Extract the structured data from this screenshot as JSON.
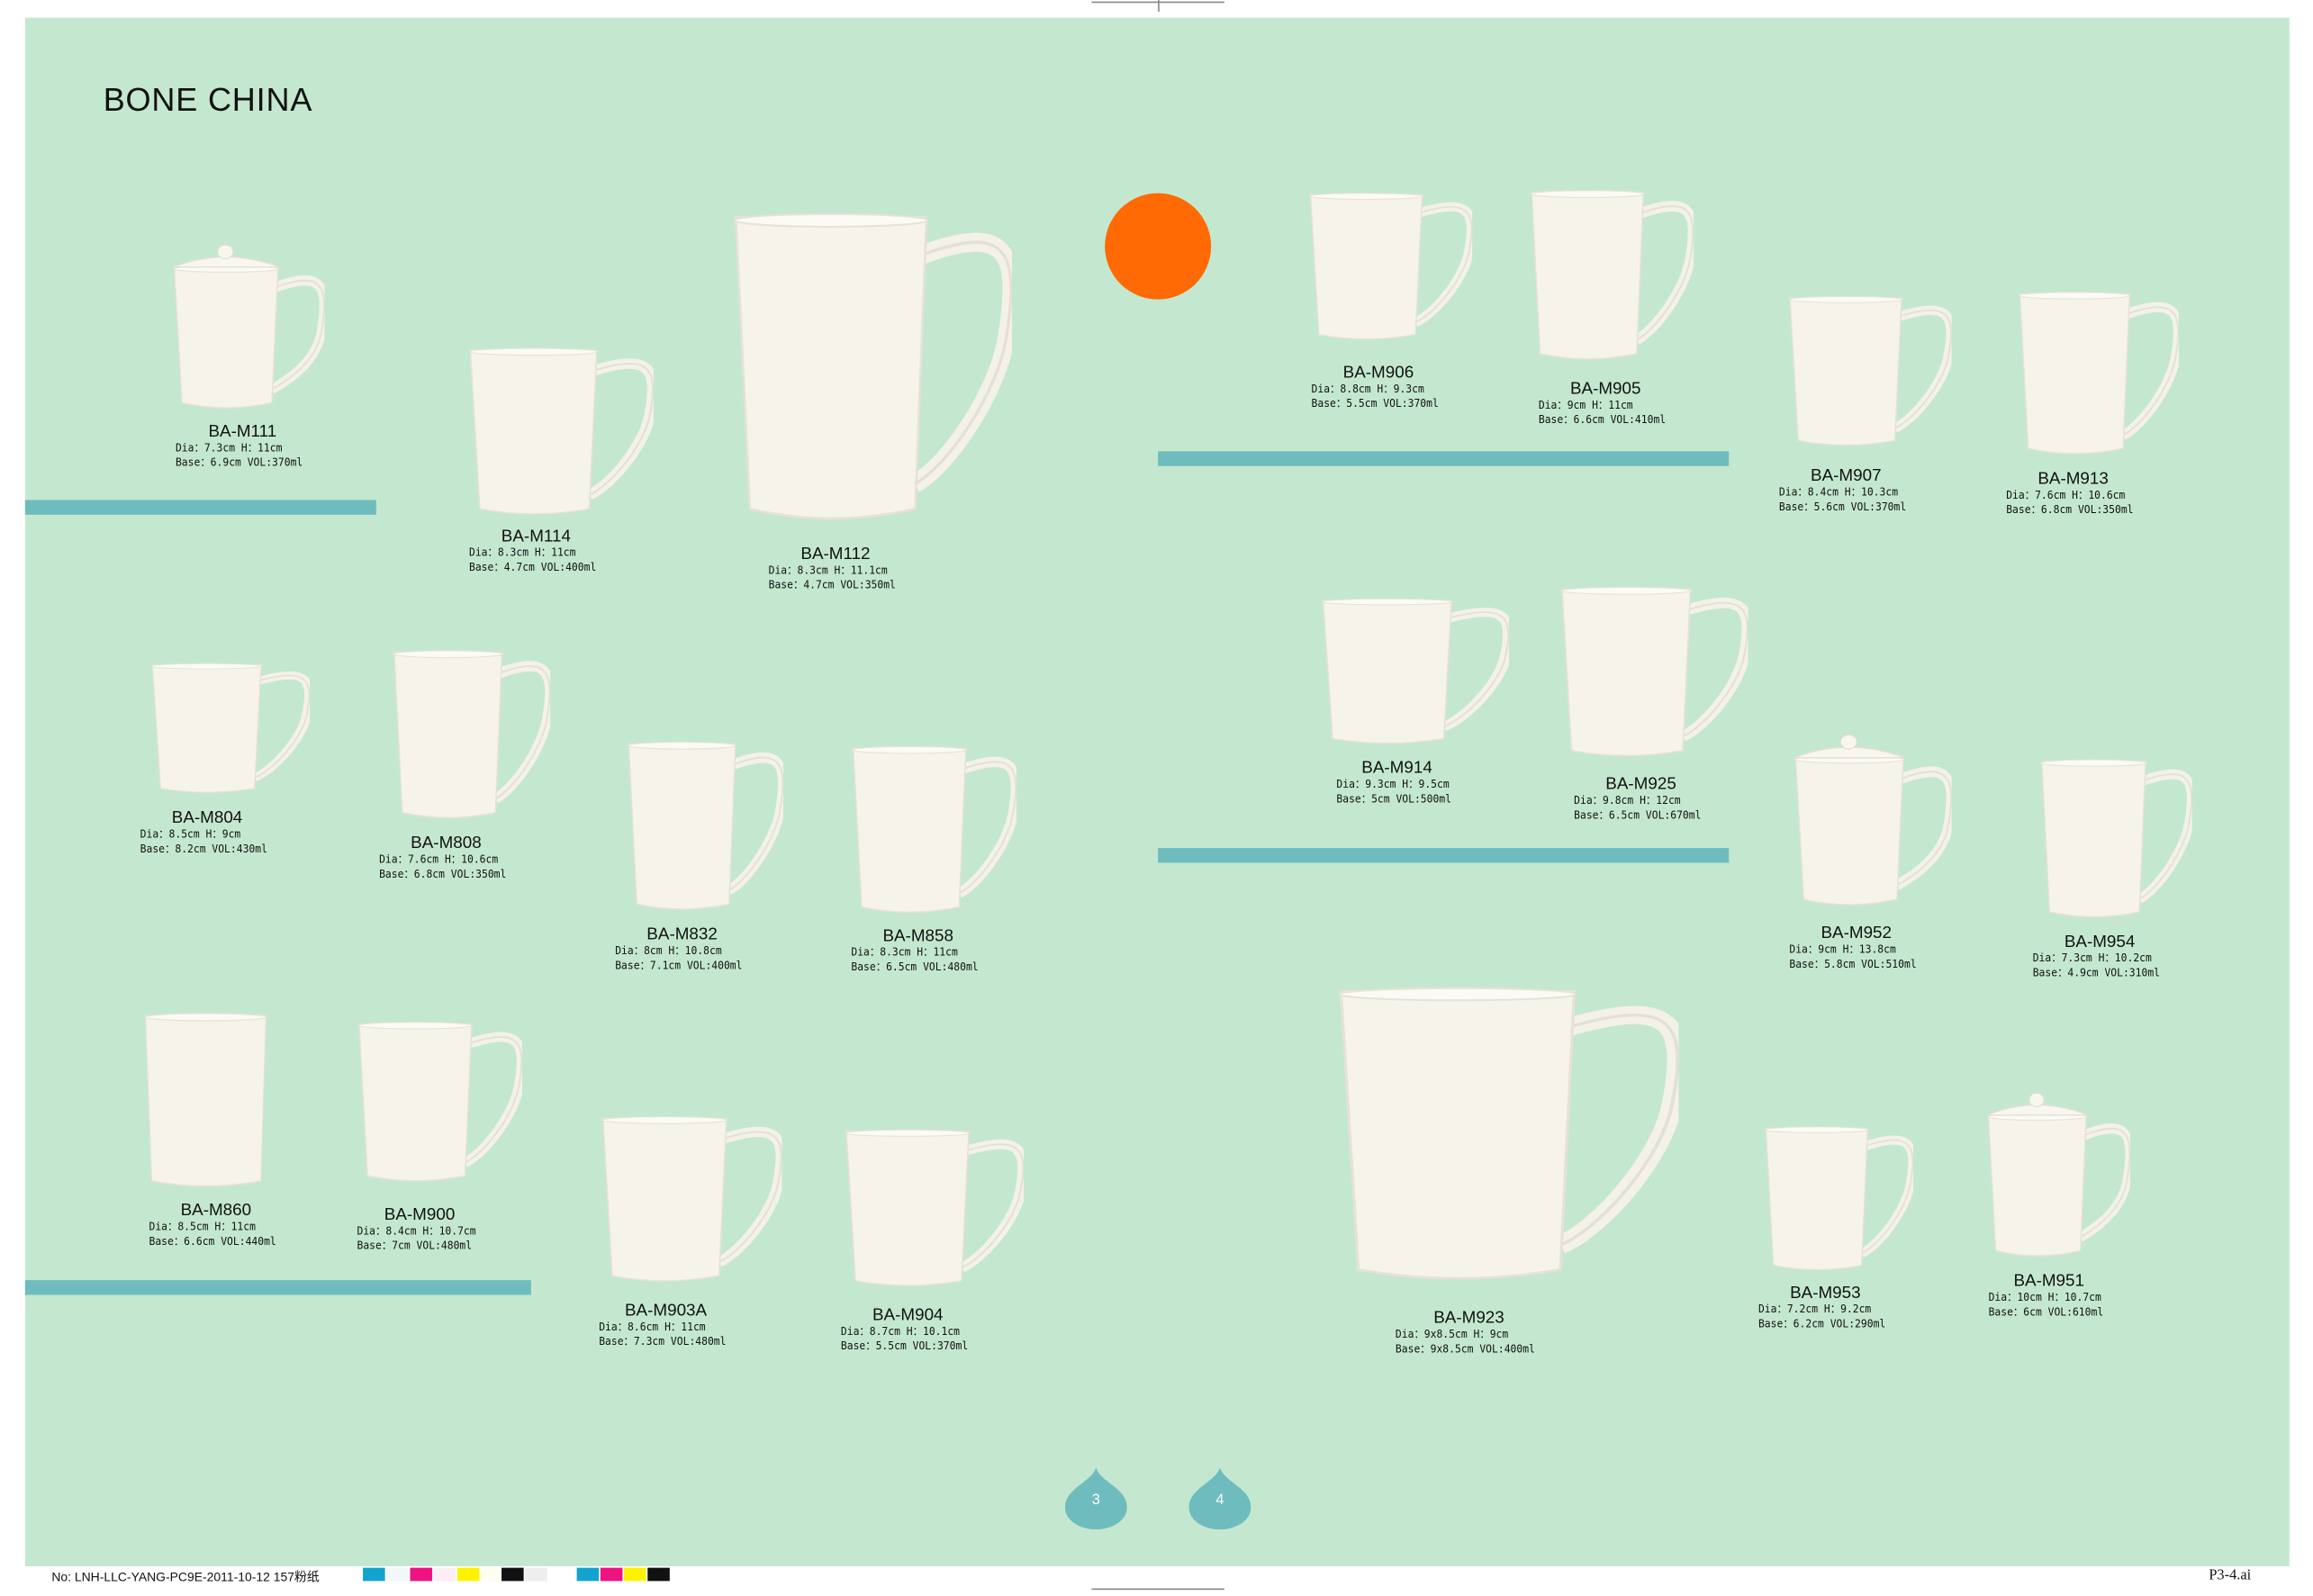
{
  "page_title": "BONE CHINA",
  "colors": {
    "background": "#c4e8cf",
    "bar": "#6fbcbe",
    "accent_dot": "#ff6a04",
    "mug": "#f6f3ea"
  },
  "products": [
    {
      "code": "BA-M111",
      "dia": "Dia：7.3cm H：11cm",
      "base": "Base：6.9cm VOL:370ml",
      "lid": true
    },
    {
      "code": "BA-M114",
      "dia": "Dia：8.3cm H：11cm",
      "base": "Base：4.7cm VOL:400ml"
    },
    {
      "code": "BA-M112",
      "dia": "Dia：8.3cm H：11.1cm",
      "base": "Base：4.7cm VOL:350ml"
    },
    {
      "code": "BA-M906",
      "dia": "Dia：8.8cm H：9.3cm",
      "base": "Base：5.5cm VOL:370ml"
    },
    {
      "code": "BA-M905",
      "dia": "Dia：9cm H：11cm",
      "base": "Base：6.6cm VOL:410ml"
    },
    {
      "code": "BA-M907",
      "dia": "Dia：8.4cm H：10.3cm",
      "base": "Base：5.6cm VOL:370ml"
    },
    {
      "code": "BA-M913",
      "dia": "Dia：7.6cm H：10.6cm",
      "base": "Base：6.8cm VOL:350ml"
    },
    {
      "code": "BA-M804",
      "dia": "Dia：8.5cm H：9cm",
      "base": "Base：8.2cm VOL:430ml"
    },
    {
      "code": "BA-M808",
      "dia": "Dia：7.6cm H：10.6cm",
      "base": "Base：6.8cm VOL:350ml"
    },
    {
      "code": "BA-M832",
      "dia": "Dia：8cm H：10.8cm",
      "base": "Base：7.1cm VOL:400ml"
    },
    {
      "code": "BA-M858",
      "dia": "Dia：8.3cm H：11cm",
      "base": "Base：6.5cm VOL:480ml"
    },
    {
      "code": "BA-M914",
      "dia": "Dia：9.3cm H：9.5cm",
      "base": "Base：5cm VOL:500ml"
    },
    {
      "code": "BA-M925",
      "dia": "Dia：9.8cm H：12cm",
      "base": "Base：6.5cm VOL:670ml"
    },
    {
      "code": "BA-M952",
      "dia": "Dia：9cm H：13.8cm",
      "base": "Base：5.8cm VOL:510ml",
      "lid": true
    },
    {
      "code": "BA-M954",
      "dia": "Dia：7.3cm H：10.2cm",
      "base": "Base：4.9cm VOL:310ml"
    },
    {
      "code": "BA-M860",
      "dia": "Dia：8.5cm H：11cm",
      "base": "Base：6.6cm VOL:440ml",
      "nohandle": true
    },
    {
      "code": "BA-M900",
      "dia": "Dia：8.4cm H：10.7cm",
      "base": "Base：7cm VOL:480ml"
    },
    {
      "code": "BA-M903A",
      "dia": "Dia：8.6cm H：11cm",
      "base": "Base：7.3cm VOL:480ml"
    },
    {
      "code": "BA-M904",
      "dia": "Dia：8.7cm H：10.1cm",
      "base": "Base：5.5cm VOL:370ml"
    },
    {
      "code": "BA-M923",
      "dia": "Dia：9x8.5cm H：9cm",
      "base": "Base：9x8.5cm VOL:400ml"
    },
    {
      "code": "BA-M953",
      "dia": "Dia：7.2cm H：9.2cm",
      "base": "Base：6.2cm VOL:290ml"
    },
    {
      "code": "BA-M951",
      "dia": "Dia：10cm H：10.7cm",
      "base": "Base：6cm VOL:610ml",
      "lid": true
    }
  ],
  "page_numbers": [
    "3",
    "4"
  ],
  "footer": {
    "job": "No: LNH-LLC-YANG-PC9E-2011-10-12  157粉纸",
    "file": "P3-4.ai",
    "swatches": [
      "#12a3cf",
      "#f2f7fa",
      "#ee1283",
      "#fdeef5",
      "#fff200",
      "#fffdf0",
      "#111111",
      "#eeeeee",
      "#ffffff",
      "#12a3cf",
      "#ee1283",
      "#fff200",
      "#111111"
    ]
  }
}
